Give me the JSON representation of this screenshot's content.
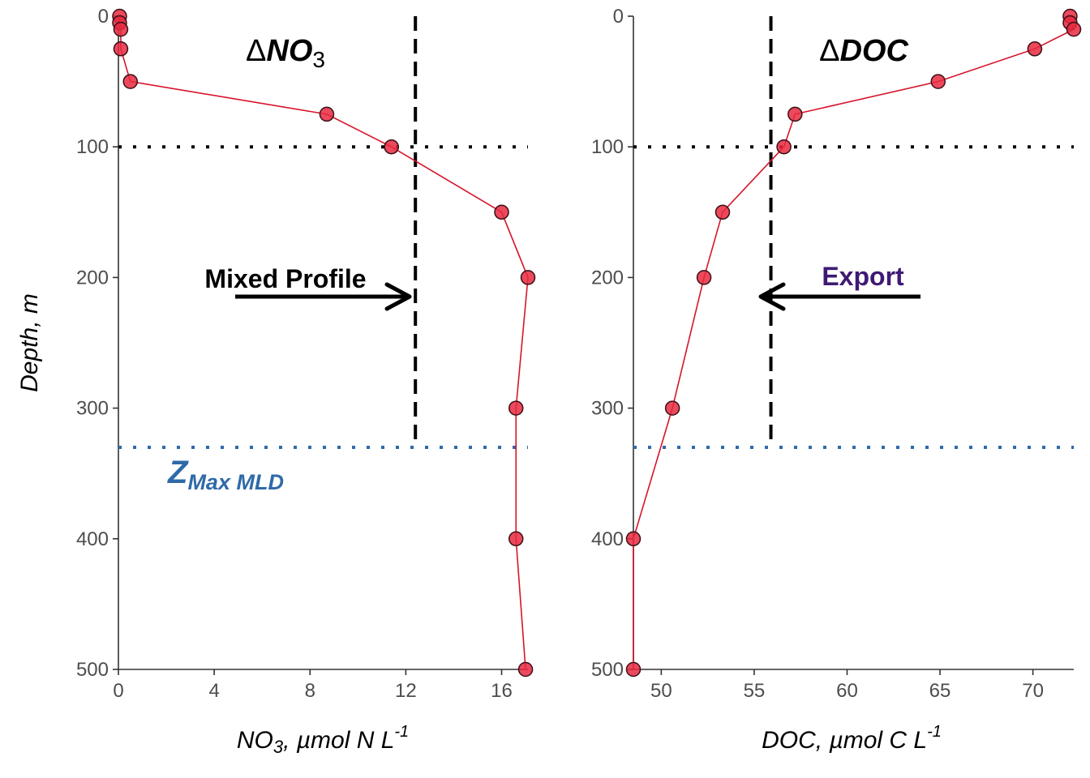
{
  "chart_data": [
    {
      "type": "line",
      "panel_title": "ΔNO₃",
      "panel_title_symbol": "Δ",
      "panel_title_main": "NO",
      "panel_title_sub": "3",
      "xlabel_main": "NO",
      "xlabel_sub": "3",
      "xlabel_rest": ", µmol N L",
      "xlabel_sup": "-1",
      "ylabel": "Depth, m",
      "xlim": [
        0,
        17.1
      ],
      "ylim": [
        500,
        0
      ],
      "xticks": [
        0,
        4,
        8,
        12,
        16
      ],
      "yticks": [
        0,
        100,
        200,
        300,
        400,
        500
      ],
      "series": [
        {
          "x": [
            0.05,
            0.05,
            0.1,
            0.1,
            0.5,
            8.7,
            11.4,
            16.0,
            17.1,
            16.6,
            16.6,
            17.0
          ],
          "y": [
            0,
            5,
            10,
            25,
            50,
            75,
            100,
            150,
            200,
            300,
            400,
            500
          ]
        }
      ],
      "vline": 12.4,
      "vline_ymax": 330,
      "hline_dotted": 100,
      "hline_mld": 330,
      "annotation_text": "Mixed Profile",
      "annotation_color": "#000000",
      "arrow_direction": "right",
      "mld_label_main": "Z",
      "mld_label_sub": "Max MLD",
      "mld_label_color": "#2f6aa8"
    },
    {
      "type": "line",
      "panel_title": "ΔDOC",
      "panel_title_symbol": "Δ",
      "panel_title_main": "DOC",
      "xlabel_main": "DOC, µmol C L",
      "xlabel_sup": "-1",
      "ylabel": "",
      "xlim": [
        48.5,
        72.2
      ],
      "ylim": [
        500,
        0
      ],
      "xticks": [
        50,
        55,
        60,
        65,
        70
      ],
      "yticks": [
        0,
        100,
        200,
        300,
        400,
        500
      ],
      "series": [
        {
          "x": [
            72.0,
            72.0,
            72.2,
            70.1,
            64.9,
            57.2,
            56.6,
            53.3,
            52.3,
            50.6,
            48.5,
            48.5
          ],
          "y": [
            0,
            5,
            10,
            25,
            50,
            75,
            100,
            150,
            200,
            300,
            400,
            500
          ]
        }
      ],
      "vline": 55.9,
      "vline_ymax": 330,
      "hline_dotted": 100,
      "hline_mld": 330,
      "annotation_text": "Export",
      "annotation_color": "#3f1a74",
      "arrow_direction": "left"
    }
  ],
  "colors": {
    "line": "#d7142a",
    "marker_fill": "#e8293f",
    "marker_stroke": "#3a1016",
    "mld_line": "#2f6aa8"
  }
}
